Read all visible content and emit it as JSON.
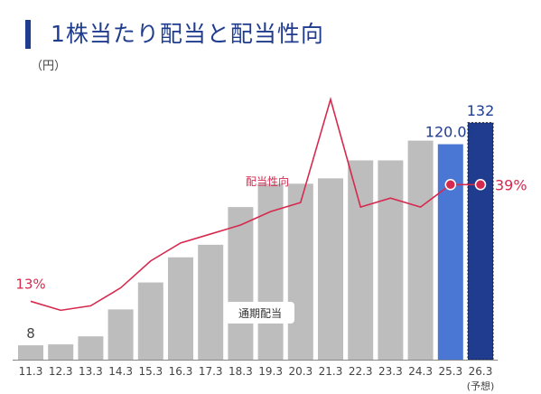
{
  "header": {
    "title": "1株当たり配当と配当性向",
    "unit": "（円）"
  },
  "chart_data": {
    "type": "bar",
    "categories": [
      "11.3",
      "12.3",
      "13.3",
      "14.3",
      "15.3",
      "16.3",
      "17.3",
      "18.3",
      "19.3",
      "20.3",
      "21.3",
      "22.3",
      "23.3",
      "24.3",
      "25.3",
      "26.3"
    ],
    "forecast_note": "(予想)",
    "series": [
      {
        "name": "通期配当",
        "values": [
          8,
          8.5,
          13,
          28,
          43,
          57,
          64,
          85,
          98,
          98,
          101,
          111,
          111,
          122,
          120.01,
          132
        ],
        "data_labels": [
          "8",
          "",
          "",
          "",
          "",
          "",
          "",
          "",
          "",
          "",
          "",
          "",
          "",
          "",
          "120.01",
          "132"
        ],
        "colors": {
          "default": "#bdbdbd",
          "actual_latest": "#4a77d4",
          "forecast": "#1f3c8f"
        }
      },
      {
        "name": "配当性向",
        "type": "line",
        "values": [
          13,
          11,
          12,
          16,
          22,
          26,
          28,
          30,
          33,
          35,
          58,
          34,
          36,
          34,
          39,
          39
        ],
        "data_labels": [
          "13%",
          "",
          "",
          "",
          "",
          "",
          "",
          "",
          "",
          "",
          "",
          "",
          "",
          "",
          "",
          "39%"
        ],
        "color": "#d6294e"
      }
    ],
    "ylim_dividend": [
      0,
      150
    ],
    "ylim_payout": [
      0,
      60
    ],
    "grid": false,
    "legend": "inline labels"
  }
}
